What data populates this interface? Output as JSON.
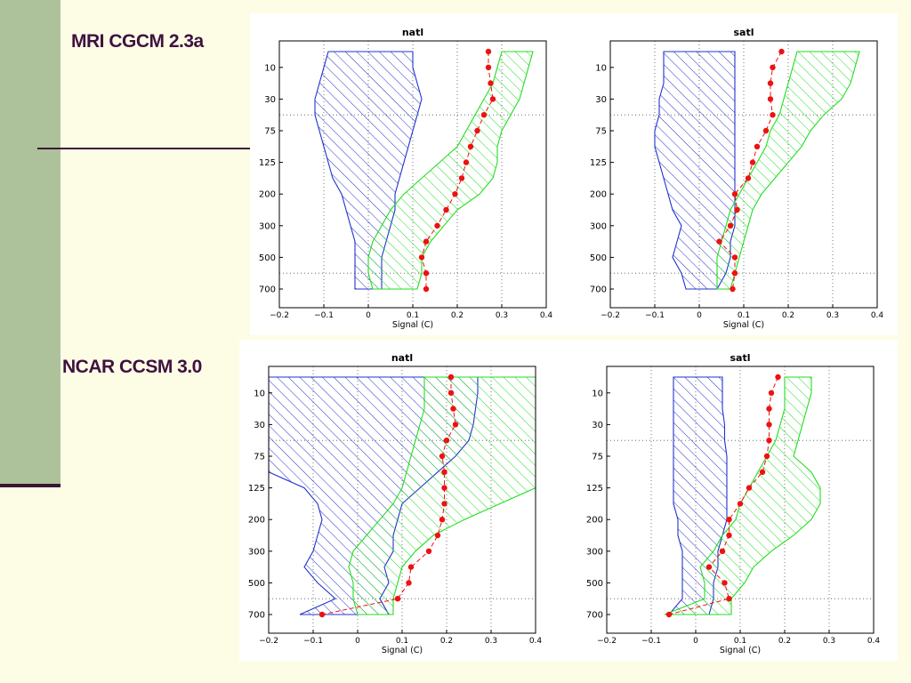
{
  "slide": {
    "labels": [
      "MRI CGCM 2.3a",
      "NCAR CCSM 3.0"
    ]
  },
  "colors": {
    "background": "#fdfde6",
    "sidebar": "#adc29a",
    "label_text": "#3e1240",
    "blue_band": "#2233cc",
    "green_band": "#22dd22",
    "signal_line": "#ee1111"
  },
  "chart_data": [
    {
      "type": "area",
      "title": "natl",
      "model": "MRI CGCM 2.3a",
      "xlabel": "Signal (C)",
      "ylabel": "",
      "xlim": [
        -0.2,
        0.4
      ],
      "xticks": [
        "−0.2",
        "−0.1",
        "0",
        "0.1",
        "0.2",
        "0.3",
        "0.4"
      ],
      "y_levels": [
        5,
        10,
        20,
        30,
        50,
        75,
        100,
        125,
        150,
        200,
        250,
        300,
        400,
        500,
        600,
        700
      ],
      "yticks": [
        10,
        30,
        75,
        125,
        200,
        300,
        500,
        700
      ],
      "grid": true,
      "series": [
        {
          "kind": "band",
          "color": "blue",
          "values": [
            [
              -0.09,
              0.1
            ],
            [
              -0.1,
              0.1
            ],
            [
              -0.11,
              0.11
            ],
            [
              -0.12,
              0.12
            ],
            [
              -0.12,
              0.11
            ],
            [
              -0.11,
              0.1
            ],
            [
              -0.1,
              0.09
            ],
            [
              -0.09,
              0.08
            ],
            [
              -0.08,
              0.07
            ],
            [
              -0.06,
              0.06
            ],
            [
              -0.05,
              0.06
            ],
            [
              -0.04,
              0.05
            ],
            [
              -0.03,
              0.04
            ],
            [
              -0.03,
              0.03
            ],
            [
              -0.03,
              0.03
            ],
            [
              -0.03,
              0.03
            ]
          ]
        },
        {
          "kind": "band",
          "color": "green",
          "values": [
            [
              0.3,
              0.37
            ],
            [
              0.29,
              0.36
            ],
            [
              0.28,
              0.35
            ],
            [
              0.26,
              0.34
            ],
            [
              0.24,
              0.32
            ],
            [
              0.22,
              0.3
            ],
            [
              0.2,
              0.29
            ],
            [
              0.16,
              0.29
            ],
            [
              0.12,
              0.28
            ],
            [
              0.08,
              0.25
            ],
            [
              0.05,
              0.2
            ],
            [
              0.03,
              0.17
            ],
            [
              0.01,
              0.14
            ],
            [
              0.0,
              0.12
            ],
            [
              0.0,
              0.12
            ],
            [
              0.01,
              0.11
            ]
          ]
        },
        {
          "kind": "points",
          "color": "red",
          "values": [
            0.27,
            0.27,
            0.275,
            0.28,
            0.26,
            0.245,
            0.23,
            0.22,
            0.21,
            0.195,
            0.175,
            0.155,
            0.13,
            0.12,
            0.13,
            0.13
          ]
        }
      ]
    },
    {
      "type": "area",
      "title": "satl",
      "model": "MRI CGCM 2.3a",
      "xlabel": "Signal (C)",
      "ylabel": "",
      "xlim": [
        -0.2,
        0.4
      ],
      "xticks": [
        "−0.2",
        "−0.1",
        "0",
        "0.1",
        "0.2",
        "0.3",
        "0.4"
      ],
      "y_levels": [
        5,
        10,
        20,
        30,
        50,
        75,
        100,
        125,
        150,
        200,
        250,
        300,
        400,
        500,
        600,
        700
      ],
      "yticks": [
        10,
        30,
        75,
        125,
        200,
        300,
        500,
        700
      ],
      "grid": true,
      "series": [
        {
          "kind": "band",
          "color": "blue",
          "values": [
            [
              -0.08,
              0.08
            ],
            [
              -0.08,
              0.08
            ],
            [
              -0.08,
              0.08
            ],
            [
              -0.09,
              0.08
            ],
            [
              -0.09,
              0.08
            ],
            [
              -0.1,
              0.08
            ],
            [
              -0.1,
              0.08
            ],
            [
              -0.09,
              0.08
            ],
            [
              -0.08,
              0.08
            ],
            [
              -0.07,
              0.08
            ],
            [
              -0.06,
              0.08
            ],
            [
              -0.04,
              0.08
            ],
            [
              -0.05,
              0.07
            ],
            [
              -0.06,
              0.07
            ],
            [
              -0.04,
              0.06
            ],
            [
              -0.03,
              0.04
            ]
          ]
        },
        {
          "kind": "band",
          "color": "green",
          "values": [
            [
              0.22,
              0.36
            ],
            [
              0.21,
              0.35
            ],
            [
              0.2,
              0.34
            ],
            [
              0.19,
              0.32
            ],
            [
              0.18,
              0.28
            ],
            [
              0.16,
              0.25
            ],
            [
              0.15,
              0.23
            ],
            [
              0.13,
              0.2
            ],
            [
              0.11,
              0.17
            ],
            [
              0.09,
              0.14
            ],
            [
              0.07,
              0.12
            ],
            [
              0.06,
              0.11
            ],
            [
              0.05,
              0.1
            ],
            [
              0.04,
              0.09
            ],
            [
              0.04,
              0.08
            ],
            [
              0.04,
              0.07
            ]
          ]
        },
        {
          "kind": "points",
          "color": "red",
          "values": [
            0.185,
            0.165,
            0.16,
            0.16,
            0.165,
            0.15,
            0.13,
            0.12,
            0.11,
            0.08,
            0.085,
            0.07,
            0.045,
            0.08,
            0.08,
            0.075
          ]
        }
      ]
    },
    {
      "type": "area",
      "title": "natl",
      "model": "NCAR CCSM 3.0",
      "xlabel": "Signal (C)",
      "ylabel": "",
      "xlim": [
        -0.2,
        0.4
      ],
      "xticks": [
        "−0.2",
        "−0.1",
        "0",
        "0.1",
        "0.2",
        "0.3",
        "0.4"
      ],
      "y_levels": [
        5,
        10,
        20,
        30,
        50,
        75,
        100,
        125,
        150,
        200,
        250,
        300,
        400,
        500,
        600,
        700
      ],
      "yticks": [
        10,
        30,
        75,
        125,
        200,
        300,
        500,
        700
      ],
      "grid": true,
      "series": [
        {
          "kind": "band",
          "color": "blue",
          "values": [
            [
              -0.2,
              0.27
            ],
            [
              -0.2,
              0.27
            ],
            [
              -0.2,
              0.265
            ],
            [
              -0.2,
              0.26
            ],
            [
              -0.2,
              0.25
            ],
            [
              -0.2,
              0.22
            ],
            [
              -0.2,
              0.18
            ],
            [
              -0.12,
              0.14
            ],
            [
              -0.09,
              0.1
            ],
            [
              -0.08,
              0.09
            ],
            [
              -0.09,
              0.08
            ],
            [
              -0.1,
              0.08
            ],
            [
              -0.12,
              0.06
            ],
            [
              -0.09,
              0.07
            ],
            [
              -0.05,
              0.05
            ],
            [
              -0.13,
              0.07
            ]
          ]
        },
        {
          "kind": "band",
          "color": "green",
          "values": [
            [
              0.15,
              0.4
            ],
            [
              0.15,
              0.4
            ],
            [
              0.15,
              0.4
            ],
            [
              0.14,
              0.4
            ],
            [
              0.13,
              0.4
            ],
            [
              0.12,
              0.4
            ],
            [
              0.11,
              0.4
            ],
            [
              0.1,
              0.4
            ],
            [
              0.08,
              0.32
            ],
            [
              0.05,
              0.24
            ],
            [
              0.02,
              0.17
            ],
            [
              -0.01,
              0.13
            ],
            [
              -0.02,
              0.1
            ],
            [
              -0.01,
              0.09
            ],
            [
              -0.01,
              0.08
            ],
            [
              0.0,
              0.08
            ]
          ]
        },
        {
          "kind": "points",
          "color": "red",
          "values": [
            0.21,
            0.21,
            0.215,
            0.22,
            0.2,
            0.19,
            0.195,
            0.195,
            0.195,
            0.19,
            0.18,
            0.16,
            0.12,
            0.115,
            0.09,
            -0.08
          ]
        }
      ]
    },
    {
      "type": "area",
      "title": "satl",
      "model": "NCAR CCSM 3.0",
      "xlabel": "Signal (C)",
      "ylabel": "",
      "xlim": [
        -0.2,
        0.4
      ],
      "xticks": [
        "−0.2",
        "−0.1",
        "0",
        "0.1",
        "0.2",
        "0.3",
        "0.4"
      ],
      "y_levels": [
        5,
        10,
        20,
        30,
        50,
        75,
        100,
        125,
        150,
        200,
        250,
        300,
        400,
        500,
        600,
        700
      ],
      "yticks": [
        10,
        30,
        75,
        125,
        200,
        300,
        500,
        700
      ],
      "grid": true,
      "series": [
        {
          "kind": "band",
          "color": "blue",
          "values": [
            [
              -0.05,
              0.06
            ],
            [
              -0.05,
              0.06
            ],
            [
              -0.05,
              0.06
            ],
            [
              -0.05,
              0.065
            ],
            [
              -0.05,
              0.065
            ],
            [
              -0.05,
              0.07
            ],
            [
              -0.05,
              0.07
            ],
            [
              -0.05,
              0.07
            ],
            [
              -0.05,
              0.07
            ],
            [
              -0.04,
              0.07
            ],
            [
              -0.04,
              0.06
            ],
            [
              -0.03,
              0.05
            ],
            [
              -0.03,
              0.05
            ],
            [
              -0.03,
              0.04
            ],
            [
              -0.03,
              0.04
            ],
            [
              -0.06,
              0.03
            ]
          ]
        },
        {
          "kind": "band",
          "color": "green",
          "values": [
            [
              0.2,
              0.26
            ],
            [
              0.2,
              0.26
            ],
            [
              0.2,
              0.25
            ],
            [
              0.19,
              0.24
            ],
            [
              0.18,
              0.23
            ],
            [
              0.16,
              0.22
            ],
            [
              0.14,
              0.26
            ],
            [
              0.12,
              0.28
            ],
            [
              0.1,
              0.28
            ],
            [
              0.09,
              0.26
            ],
            [
              0.06,
              0.22
            ],
            [
              0.04,
              0.17
            ],
            [
              0.01,
              0.13
            ],
            [
              0.02,
              0.11
            ],
            [
              0.02,
              0.08
            ],
            [
              -0.07,
              0.08
            ]
          ]
        },
        {
          "kind": "points",
          "color": "red",
          "values": [
            0.185,
            0.17,
            0.165,
            0.165,
            0.165,
            0.16,
            0.15,
            0.12,
            0.1,
            0.075,
            0.075,
            0.06,
            0.03,
            0.065,
            0.075,
            -0.06
          ]
        }
      ]
    }
  ]
}
